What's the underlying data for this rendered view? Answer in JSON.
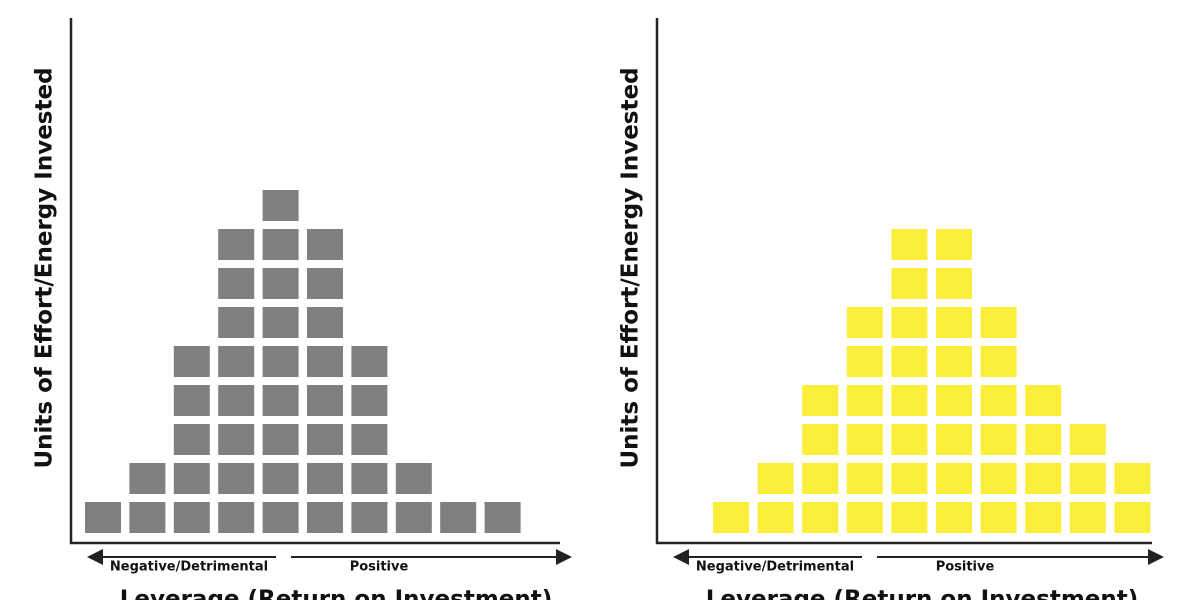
{
  "chart_data": [
    {
      "type": "bar",
      "values": [
        1,
        2,
        5,
        8,
        9,
        8,
        5,
        2,
        1,
        1
      ],
      "color": "#808080",
      "x_label": "Leverage (Return on Investment)",
      "y_label": "Units of Effort/Energy Invested",
      "annotations": [
        "Negative/Detrimental",
        "Positive"
      ]
    },
    {
      "type": "bar",
      "values": [
        1,
        2,
        4,
        6,
        8,
        8,
        6,
        4,
        3,
        2
      ],
      "color": "#fbee3a",
      "x_label": "Leverage (Return on Investment)",
      "y_label": "Units of Effort/Energy Invested",
      "annotations": [
        "Negative/Detrimental",
        "Positive"
      ]
    }
  ]
}
